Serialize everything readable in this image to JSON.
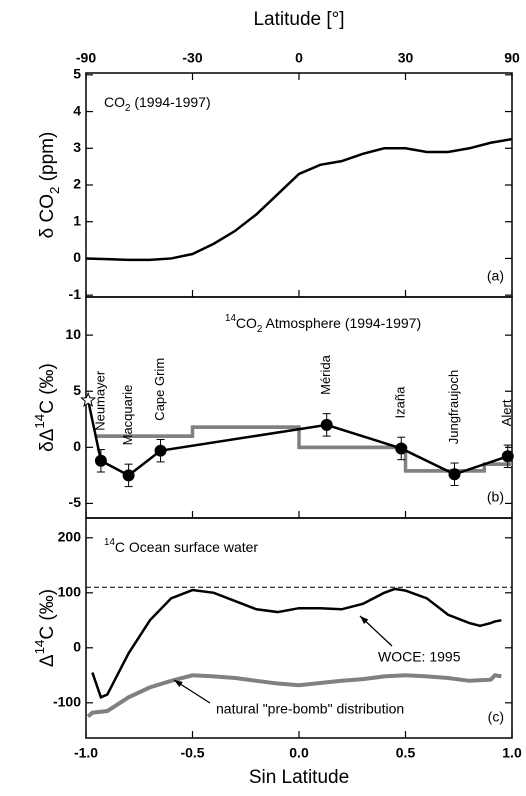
{
  "chart_data": [
    {
      "type": "line",
      "x2label": "Latitude [°]",
      "x2ticks": [
        -90,
        -30,
        0,
        30,
        90
      ],
      "annotation": [
        "CO",
        "2",
        " (1994-1997)"
      ],
      "annotation_style": [
        "",
        "sub",
        ""
      ],
      "ylabel": [
        "δ CO",
        "2",
        " (ppm)"
      ],
      "ylabel_style": [
        "",
        "sub",
        ""
      ],
      "panel_label": "(a)",
      "xlim": [
        -1,
        1
      ],
      "ylim": [
        -1.05,
        5.05
      ],
      "yticks": [
        -1,
        0,
        1,
        2,
        3,
        4,
        5
      ],
      "series": [
        {
          "kind": "line",
          "color": "#000000",
          "x": [
            -1,
            -0.9,
            -0.8,
            -0.7,
            -0.6,
            -0.5,
            -0.4,
            -0.3,
            -0.2,
            -0.1,
            0,
            0.1,
            0.2,
            0.3,
            0.4,
            0.5,
            0.6,
            0.7,
            0.8,
            0.9,
            1
          ],
          "values": [
            0,
            -0.02,
            -0.04,
            -0.04,
            0,
            0.12,
            0.4,
            0.75,
            1.2,
            1.75,
            2.3,
            2.55,
            2.65,
            2.85,
            3.0,
            3.0,
            2.9,
            2.9,
            3.0,
            3.15,
            3.25
          ]
        }
      ]
    },
    {
      "type": "line",
      "annotation": [
        "14",
        "CO",
        "2",
        " Atmosphere (1994-1997)"
      ],
      "annotation_style": [
        "sup",
        "",
        "sub",
        ""
      ],
      "ylabel": [
        "δΔ",
        "14",
        "C (‰)"
      ],
      "ylabel_style": [
        "",
        "sup",
        ""
      ],
      "panel_label": "(b)",
      "xlim": [
        -1,
        1
      ],
      "ylim": [
        -6.3,
        13.4
      ],
      "yticks": [
        -5,
        0,
        5,
        10
      ],
      "series": [
        {
          "kind": "step",
          "color": "#808080",
          "edges": [
            -0.96,
            -0.5,
            0,
            0.5,
            0.87,
            1
          ],
          "values": [
            1.0,
            1.8,
            0,
            -2.1,
            -1.5
          ]
        },
        {
          "kind": "points",
          "color": "#000000",
          "x": [
            -0.99,
            -0.93,
            -0.8,
            -0.65,
            0.13,
            0.48,
            0.73,
            0.98
          ],
          "values": [
            4.2,
            -1.2,
            -2.5,
            -0.3,
            2.0,
            -0.1,
            -2.4,
            -0.8
          ],
          "errors": [
            null,
            1,
            1,
            1,
            1,
            1,
            1,
            1
          ],
          "marker": [
            "star",
            "circle",
            "circle",
            "circle",
            "circle",
            "circle",
            "circle",
            "circle"
          ],
          "labels": [
            null,
            "Neumayer",
            "Macquarie",
            "Cape Grim",
            "Mérida",
            "Izaña",
            "Jungfraujoch",
            "Alert"
          ]
        }
      ]
    },
    {
      "type": "line",
      "annotation": [
        "14",
        "C Ocean surface water"
      ],
      "annotation_style": [
        "sup",
        ""
      ],
      "ylabel": [
        "Δ",
        "14",
        "C (‰)"
      ],
      "ylabel_style": [
        "",
        "sup",
        ""
      ],
      "panel_label": "(c)",
      "xlabel": "Sin Latitude",
      "xlim": [
        -1,
        1
      ],
      "xticks": [
        {
          "value": -1,
          "label": "-1.0"
        },
        -0.5,
        {
          "value": 0,
          "label": "0.0"
        },
        0.5,
        {
          "value": 1,
          "label": "1.0"
        }
      ],
      "ylim": [
        -164,
        236
      ],
      "yticks": [
        -100,
        0,
        100,
        200
      ],
      "hline": 110,
      "series": [
        {
          "kind": "line",
          "color": "#000000",
          "label": "WOCE: 1995",
          "x": [
            -0.97,
            -0.93,
            -0.9,
            -0.8,
            -0.7,
            -0.6,
            -0.5,
            -0.4,
            -0.3,
            -0.2,
            -0.1,
            0,
            0.1,
            0.2,
            0.3,
            0.4,
            0.45,
            0.5,
            0.6,
            0.7,
            0.8,
            0.85,
            0.9,
            0.92,
            0.95
          ],
          "values": [
            -45,
            -90,
            -85,
            -10,
            50,
            90,
            105,
            100,
            85,
            70,
            65,
            72,
            72,
            70,
            80,
            100,
            107,
            104,
            90,
            60,
            45,
            40,
            45,
            48,
            50
          ]
        },
        {
          "kind": "line",
          "color": "#808080",
          "label": "natural \"pre-bomb\" distribution",
          "x": [
            -0.99,
            -0.97,
            -0.9,
            -0.8,
            -0.7,
            -0.6,
            -0.5,
            -0.4,
            -0.3,
            -0.2,
            -0.1,
            0,
            0.1,
            0.2,
            0.3,
            0.4,
            0.5,
            0.6,
            0.7,
            0.8,
            0.9,
            0.92,
            0.95
          ],
          "values": [
            -125,
            -118,
            -115,
            -90,
            -72,
            -60,
            -50,
            -52,
            -55,
            -60,
            -65,
            -68,
            -64,
            -60,
            -57,
            -52,
            -50,
            -52,
            -55,
            -60,
            -58,
            -50,
            -52
          ]
        }
      ]
    }
  ]
}
